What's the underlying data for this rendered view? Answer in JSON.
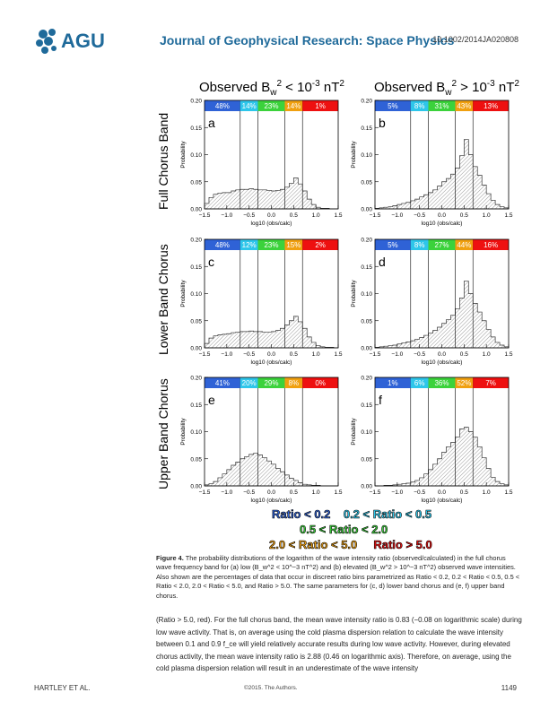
{
  "header": {
    "logo_text": "AGU",
    "journal": "Journal of Geophysical Research: Space Physics",
    "doi": "10.1002/2014JA020808"
  },
  "columns": {
    "left_title": "Observed B_w^2 < 10^-3 nT^2",
    "right_title": "Observed B_w^2 > 10^-3 nT^2"
  },
  "rows": [
    "Full Chorus Band",
    "Lower Band Chorus",
    "Upper Band Chorus"
  ],
  "legend": {
    "items": [
      {
        "label": "Ratio < 0.2",
        "color": "#2f62d6"
      },
      {
        "label": "0.2 < Ratio < 0.5",
        "color": "#2ec6ea"
      },
      {
        "label": "0.5 < Ratio < 2.0",
        "color": "#3bd23b"
      },
      {
        "label": "2.0 < Ratio < 5.0",
        "color": "#f0a010"
      },
      {
        "label": "Ratio > 5.0",
        "color": "#ee1010"
      }
    ]
  },
  "chart_data": [
    {
      "type": "bar",
      "panel": "a",
      "ylabel": "Probability",
      "xlabel": "log10 (obs/calc)",
      "xlim": [
        -1.5,
        1.5
      ],
      "ylim": [
        0,
        0.2
      ],
      "xticks": [
        "−1.5",
        "−1.0",
        "−0.5",
        "0.0",
        "0.5",
        "1.0",
        "1.5"
      ],
      "yticks": [
        "0.00",
        "0.05",
        "0.10",
        "0.15",
        "0.20"
      ],
      "bin_percentages": [
        "48%",
        "14%",
        "23%",
        "14%",
        "1%"
      ],
      "values": [
        0.01,
        0.021,
        0.027,
        0.029,
        0.03,
        0.03,
        0.033,
        0.035,
        0.036,
        0.036,
        0.037,
        0.036,
        0.035,
        0.035,
        0.034,
        0.033,
        0.034,
        0.036,
        0.04,
        0.047,
        0.057,
        0.046,
        0.033,
        0.018,
        0.008,
        0.003,
        0.001,
        0.001,
        0,
        0
      ]
    },
    {
      "type": "bar",
      "panel": "b",
      "ylabel": "Probability",
      "xlabel": "log10 (obs/calc)",
      "xlim": [
        -1.5,
        1.5
      ],
      "ylim": [
        0,
        0.2
      ],
      "xticks": [
        "−1.5",
        "−1.0",
        "−0.5",
        "0.0",
        "0.5",
        "1.0",
        "1.5"
      ],
      "yticks": [
        "0.00",
        "0.05",
        "0.10",
        "0.15",
        "0.20"
      ],
      "bin_percentages": [
        "5%",
        "8%",
        "31%",
        "43%",
        "13%"
      ],
      "values": [
        0.001,
        0.002,
        0.003,
        0.004,
        0.006,
        0.008,
        0.01,
        0.012,
        0.015,
        0.018,
        0.022,
        0.026,
        0.03,
        0.035,
        0.042,
        0.05,
        0.056,
        0.064,
        0.075,
        0.098,
        0.128,
        0.1,
        0.078,
        0.062,
        0.044,
        0.028,
        0.016,
        0.008,
        0.004,
        0.002
      ]
    },
    {
      "type": "bar",
      "panel": "c",
      "ylabel": "Probability",
      "xlabel": "log10 (obs/calc)",
      "xlim": [
        -1.5,
        1.5
      ],
      "ylim": [
        0,
        0.2
      ],
      "xticks": [
        "−1.5",
        "−1.0",
        "−0.5",
        "0.0",
        "0.5",
        "1.0",
        "1.5"
      ],
      "yticks": [
        "0.00",
        "0.05",
        "0.10",
        "0.15",
        "0.20"
      ],
      "bin_percentages": [
        "48%",
        "12%",
        "23%",
        "15%",
        "2%"
      ],
      "values": [
        0.008,
        0.018,
        0.022,
        0.024,
        0.025,
        0.026,
        0.028,
        0.029,
        0.03,
        0.03,
        0.031,
        0.03,
        0.03,
        0.029,
        0.029,
        0.03,
        0.032,
        0.036,
        0.042,
        0.05,
        0.058,
        0.048,
        0.036,
        0.02,
        0.01,
        0.004,
        0.002,
        0.001,
        0.001,
        0
      ]
    },
    {
      "type": "bar",
      "panel": "d",
      "ylabel": "Probability",
      "xlabel": "log10 (obs/calc)",
      "xlim": [
        -1.5,
        1.5
      ],
      "ylim": [
        0,
        0.2
      ],
      "xticks": [
        "−1.5",
        "−1.0",
        "−0.5",
        "0.0",
        "0.5",
        "1.0",
        "1.5"
      ],
      "yticks": [
        "0.00",
        "0.05",
        "0.10",
        "0.15",
        "0.20"
      ],
      "bin_percentages": [
        "5%",
        "8%",
        "27%",
        "44%",
        "16%"
      ],
      "values": [
        0.001,
        0.002,
        0.003,
        0.004,
        0.005,
        0.007,
        0.009,
        0.011,
        0.013,
        0.016,
        0.019,
        0.023,
        0.027,
        0.032,
        0.038,
        0.045,
        0.052,
        0.06,
        0.072,
        0.092,
        0.123,
        0.1,
        0.082,
        0.066,
        0.05,
        0.034,
        0.02,
        0.01,
        0.005,
        0.002
      ]
    },
    {
      "type": "bar",
      "panel": "e",
      "ylabel": "Probability",
      "xlabel": "log10 (obs/calc)",
      "xlim": [
        -1.5,
        1.5
      ],
      "ylim": [
        0,
        0.2
      ],
      "xticks": [
        "−1.5",
        "−1.0",
        "−0.5",
        "0.0",
        "0.5",
        "1.0",
        "1.5"
      ],
      "yticks": [
        "0.00",
        "0.05",
        "0.10",
        "0.15",
        "0.20"
      ],
      "bin_percentages": [
        "41%",
        "20%",
        "29%",
        "8%",
        "0%"
      ],
      "values": [
        0.002,
        0.004,
        0.008,
        0.015,
        0.022,
        0.03,
        0.038,
        0.044,
        0.05,
        0.054,
        0.058,
        0.06,
        0.057,
        0.052,
        0.046,
        0.04,
        0.032,
        0.026,
        0.02,
        0.014,
        0.01,
        0.006,
        0.003,
        0.002,
        0.001,
        0.001,
        0,
        0,
        0,
        0
      ]
    },
    {
      "type": "bar",
      "panel": "f",
      "ylabel": "Probability",
      "xlabel": "log10 (obs/calc)",
      "xlim": [
        -1.5,
        1.5
      ],
      "ylim": [
        0,
        0.2
      ],
      "xticks": [
        "−1.5",
        "−1.0",
        "−0.5",
        "0.0",
        "0.5",
        "1.0",
        "1.5"
      ],
      "yticks": [
        "0.00",
        "0.05",
        "0.10",
        "0.15",
        "0.20"
      ],
      "bin_percentages": [
        "1%",
        "6%",
        "36%",
        "52%",
        "7%"
      ],
      "values": [
        0,
        0,
        0.001,
        0.001,
        0.002,
        0.003,
        0.004,
        0.005,
        0.007,
        0.01,
        0.015,
        0.022,
        0.03,
        0.04,
        0.05,
        0.062,
        0.072,
        0.08,
        0.09,
        0.105,
        0.108,
        0.1,
        0.09,
        0.072,
        0.052,
        0.032,
        0.016,
        0.008,
        0.004,
        0.002
      ]
    }
  ],
  "caption": {
    "label": "Figure 4.",
    "text": "The probability distributions of the logarithm of the wave intensity ratio (observed/calculated) in the full chorus wave frequency band for (a) low (B_w^2 < 10^−3 nT^2) and (b) elevated (B_w^2 > 10^−3 nT^2) observed wave intensities. Also shown are the percentages of data that occur in discreet ratio bins parametrized as Ratio < 0.2, 0.2 < Ratio < 0.5, 0.5 < Ratio < 2.0, 2.0 < Ratio < 5.0, and Ratio > 5.0. The same parameters for (c, d) lower band chorus and (e, f) upper band chorus."
  },
  "body": "(Ratio > 5.0, red). For the full chorus band, the mean wave intensity ratio is 0.83 (−0.08 on logarithmic scale) during low wave activity. That is, on average using the cold plasma dispersion relation to calculate the wave intensity between 0.1 and 0.9 f_ce will yield relatively accurate results during low wave activity. However, during elevated chorus activity, the mean wave intensity ratio is 2.88 (0.46 on logarithmic axis). Therefore, on average, using the cold plasma dispersion relation will result in an underestimate of the wave intensity",
  "footer": {
    "authors": "HARTLEY ET AL.",
    "copyright": "©2015. The Authors.",
    "page": "1149"
  }
}
